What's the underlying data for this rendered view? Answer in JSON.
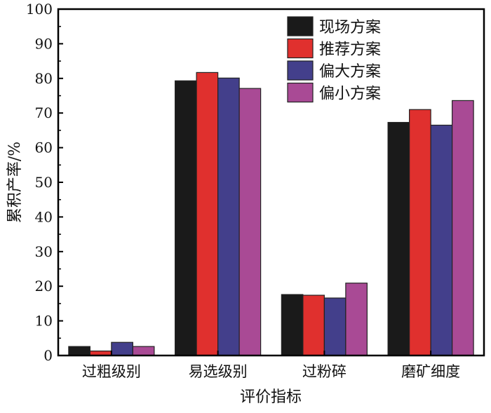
{
  "chart_data": {
    "type": "bar",
    "title": "",
    "xlabel": "评价指标",
    "ylabel": "累积产率/%",
    "ylim": [
      0,
      100
    ],
    "yticks": [
      0,
      10,
      20,
      30,
      40,
      50,
      60,
      70,
      80,
      90,
      100
    ],
    "categories": [
      "过粗级别",
      "易选级别",
      "过粉碎",
      "磨矿细度"
    ],
    "legend_position": "top-right",
    "grid": false,
    "series": [
      {
        "name": "现场方案",
        "color": "#1a1a1a",
        "values": [
          2.6,
          79.3,
          17.6,
          67.3
        ]
      },
      {
        "name": "推荐方案",
        "color": "#e0302e",
        "values": [
          1.3,
          81.7,
          17.4,
          71.0
        ]
      },
      {
        "name": "偏大方案",
        "color": "#433f8b",
        "values": [
          3.8,
          80.1,
          16.6,
          66.5
        ]
      },
      {
        "name": "偏小方案",
        "color": "#a94a95",
        "values": [
          2.6,
          77.1,
          20.9,
          73.6
        ]
      }
    ]
  }
}
